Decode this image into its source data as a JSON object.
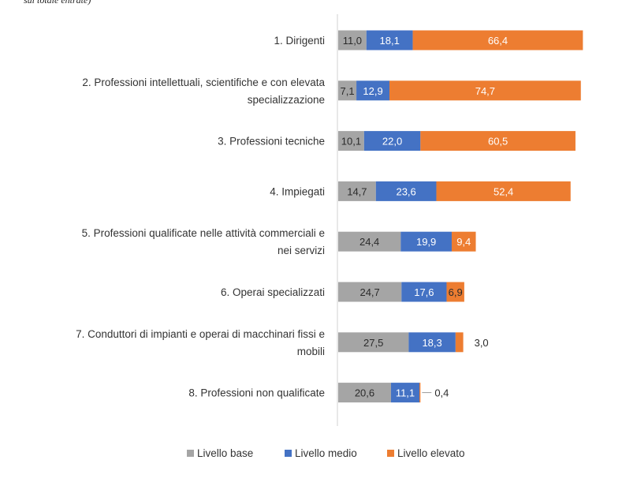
{
  "header_fragment": "sul totale entrate)",
  "chart_data": {
    "type": "bar",
    "orientation": "horizontal",
    "stacked": true,
    "categories": [
      [
        "1. Dirigenti"
      ],
      [
        "2. Professioni intellettuali, scientifiche e con elevata",
        "specializzazione"
      ],
      [
        "3. Professioni tecniche"
      ],
      [
        "4. Impiegati"
      ],
      [
        "5. Professioni qualificate nelle attività commerciali e",
        "nei servizi"
      ],
      [
        "6. Operai specializzati"
      ],
      [
        "7. Conduttori di impianti e operai di macchinari fissi e",
        "mobili"
      ],
      [
        "8. Professioni non qualificate"
      ]
    ],
    "series": [
      {
        "name": "Livello base",
        "color": "#a5a5a5",
        "values": [
          11.0,
          7.1,
          10.1,
          14.7,
          24.4,
          24.7,
          27.5,
          20.6
        ]
      },
      {
        "name": "Livello medio",
        "color": "#4472c4",
        "values": [
          18.1,
          12.9,
          22.0,
          23.6,
          19.9,
          17.6,
          18.3,
          11.1
        ]
      },
      {
        "name": "Livello elevato",
        "color": "#ed7d31",
        "values": [
          66.4,
          74.7,
          60.5,
          52.4,
          9.4,
          6.9,
          3.0,
          0.4
        ]
      }
    ],
    "xlim": [
      0,
      100
    ],
    "legend_position": "bottom",
    "grid": false
  }
}
